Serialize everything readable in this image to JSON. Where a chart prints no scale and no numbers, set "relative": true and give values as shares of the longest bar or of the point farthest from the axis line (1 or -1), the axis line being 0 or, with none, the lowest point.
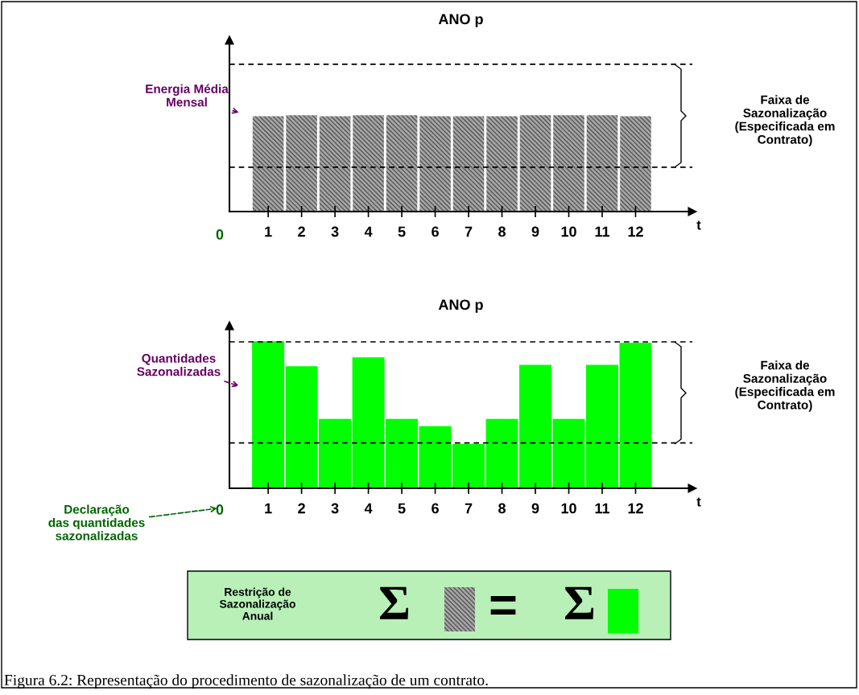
{
  "chart_data": [
    {
      "type": "bar",
      "title": "ANO p",
      "xlabel": "t",
      "relative": true,
      "legend": false,
      "grid": false,
      "categories": [
        "1",
        "2",
        "3",
        "4",
        "5",
        "6",
        "7",
        "8",
        "9",
        "10",
        "11",
        "12"
      ],
      "series": [
        {
          "color": "#a6a6a6",
          "values": [
            0.99,
            1.0,
            0.99,
            1.0,
            1.0,
            0.99,
            0.99,
            0.99,
            1.0,
            1.0,
            1.0,
            0.99
          ]
        }
      ],
      "ref_lines": [
        {
          "axis": "y",
          "value": 0.46,
          "line_style": "dashed",
          "color": "#000000"
        },
        {
          "axis": "y",
          "value": 1.53,
          "line_style": "dashed",
          "color": "#000000"
        }
      ],
      "annotations": [
        "0",
        "Energia Média\nMensal",
        "Faixa de\nSazonalização\n(Especificada em\nContrato)"
      ]
    },
    {
      "type": "bar",
      "title": "ANO p",
      "xlabel": "t",
      "relative": true,
      "legend": false,
      "grid": false,
      "categories": [
        "1",
        "2",
        "3",
        "4",
        "5",
        "6",
        "7",
        "8",
        "9",
        "10",
        "11",
        "12"
      ],
      "series": [
        {
          "color": "#00ff00",
          "values": [
            1.0,
            0.83,
            0.47,
            0.89,
            0.47,
            0.42,
            0.3,
            0.47,
            0.84,
            0.47,
            0.84,
            0.99
          ]
        }
      ],
      "ref_lines": [
        {
          "axis": "y",
          "value": 0.31,
          "line_style": "dashed",
          "color": "#000000"
        },
        {
          "axis": "y",
          "value": 1.0,
          "line_style": "dashed",
          "color": "#000000"
        }
      ],
      "annotations": [
        "0",
        "Quantidades\nSazonalizadas",
        "Faixa de\nSazonalização\n(Especificada em\nContrato)",
        "Declaração\ndas quantidades\nsazonalizadas"
      ]
    },
    {
      "type": "other",
      "annotations": [
        "Restrição de\nSazonalização\nAnual",
        "Σ",
        "=",
        "Σ",
        "Figura 6.2: Representação do procedimento de sazonalização de um contrato."
      ]
    }
  ]
}
